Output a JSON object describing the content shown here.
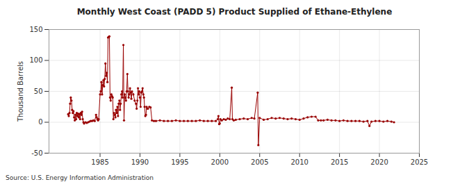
{
  "chart_data": {
    "type": "line",
    "title": "Monthly West Coast (PADD 5) Product Supplied of Ethane-Ethylene",
    "y_label": "Thousand Barrels",
    "source": "Source: U.S. Energy Information Administration",
    "color": "#990000",
    "marker": "circle",
    "line_style": "solid",
    "grid": true,
    "xlim": [
      1978.6,
      2025
    ],
    "xticks": [
      1985,
      1990,
      1995,
      2000,
      2005,
      2010,
      2015,
      2020,
      2025
    ],
    "ylim": [
      -50,
      150
    ],
    "yticks": [
      -50,
      0,
      50,
      100,
      150
    ],
    "x": [
      1981.0,
      1981.08,
      1981.17,
      1981.25,
      1981.33,
      1981.42,
      1981.5,
      1981.58,
      1981.67,
      1981.75,
      1981.83,
      1981.92,
      1982.0,
      1982.08,
      1982.17,
      1982.25,
      1982.33,
      1982.42,
      1982.5,
      1982.58,
      1982.67,
      1982.75,
      1982.83,
      1982.92,
      1983.0,
      1983.17,
      1983.33,
      1983.5,
      1983.67,
      1983.83,
      1984.0,
      1984.17,
      1984.33,
      1984.5,
      1984.58,
      1984.67,
      1984.75,
      1984.83,
      1985.0,
      1985.08,
      1985.17,
      1985.25,
      1985.33,
      1985.42,
      1985.5,
      1985.58,
      1985.67,
      1985.75,
      1985.83,
      1985.92,
      1986.0,
      1986.08,
      1986.17,
      1986.25,
      1986.33,
      1986.42,
      1986.5,
      1986.58,
      1986.67,
      1986.75,
      1986.83,
      1986.92,
      1987.0,
      1987.08,
      1987.17,
      1987.25,
      1987.33,
      1987.42,
      1987.5,
      1987.58,
      1987.67,
      1987.75,
      1987.83,
      1987.92,
      1988.0,
      1988.08,
      1988.17,
      1988.25,
      1988.33,
      1988.42,
      1988.5,
      1988.58,
      1988.67,
      1988.75,
      1988.83,
      1988.92,
      1989.0,
      1989.17,
      1989.33,
      1989.5,
      1989.58,
      1989.67,
      1989.75,
      1989.83,
      1989.92,
      1990.0,
      1990.08,
      1990.17,
      1990.25,
      1990.33,
      1990.42,
      1990.5,
      1990.58,
      1990.67,
      1990.75,
      1990.83,
      1990.92,
      1991.0,
      1991.17,
      1991.33,
      1991.5,
      1991.75,
      1992.0,
      1992.5,
      1993.0,
      1993.5,
      1994.0,
      1994.5,
      1995.0,
      1995.5,
      1996.0,
      1996.5,
      1997.0,
      1997.5,
      1998.0,
      1998.5,
      1999.0,
      1999.5,
      1999.75,
      1999.83,
      1999.92,
      2000.0,
      2000.08,
      2000.25,
      2000.5,
      2000.75,
      2001.0,
      2001.25,
      2001.5,
      2001.58,
      2001.75,
      2002.0,
      2002.5,
      2003.0,
      2003.5,
      2004.0,
      2004.33,
      2004.75,
      2004.83,
      2005.0,
      2005.5,
      2006.0,
      2006.5,
      2007.0,
      2007.5,
      2008.0,
      2008.5,
      2009.0,
      2009.5,
      2010.0,
      2010.5,
      2011.0,
      2011.5,
      2012.0,
      2012.33,
      2012.67,
      2013.0,
      2013.5,
      2014.0,
      2014.5,
      2015.0,
      2015.5,
      2016.0,
      2016.5,
      2017.0,
      2017.5,
      2018.0,
      2018.5,
      2018.75,
      2019.0,
      2019.5,
      2020.0,
      2020.5,
      2021.0,
      2021.5,
      2021.83
    ],
    "values": [
      13,
      10,
      15,
      30,
      40,
      35,
      20,
      15,
      18,
      8,
      3,
      12,
      5,
      15,
      10,
      14,
      8,
      13,
      5,
      15,
      12,
      17,
      5,
      0,
      -2,
      0,
      -1,
      0,
      1,
      2,
      2,
      3,
      2,
      12,
      8,
      5,
      3,
      5,
      45,
      50,
      65,
      45,
      60,
      68,
      58,
      70,
      95,
      75,
      80,
      65,
      137,
      138,
      139,
      40,
      35,
      45,
      42,
      40,
      5,
      15,
      12,
      8,
      20,
      15,
      25,
      10,
      30,
      35,
      20,
      30,
      45,
      50,
      40,
      125,
      3,
      45,
      40,
      35,
      50,
      78,
      50,
      40,
      45,
      55,
      48,
      38,
      50,
      45,
      35,
      30,
      22,
      35,
      55,
      45,
      50,
      40,
      25,
      48,
      50,
      55,
      45,
      40,
      25,
      10,
      12,
      25,
      22,
      22,
      25,
      24,
      3,
      2,
      2,
      3,
      2,
      2,
      2,
      3,
      2,
      2,
      2,
      2,
      2,
      3,
      2,
      2,
      2,
      2,
      5,
      10,
      -3,
      -2,
      5,
      3,
      5,
      4,
      6,
      5,
      56,
      5,
      3,
      4,
      5,
      6,
      5,
      7,
      6,
      48,
      -37,
      7,
      4,
      5,
      7,
      6,
      7,
      6,
      5,
      6,
      5,
      4,
      6,
      8,
      9,
      9,
      3,
      3,
      3,
      4,
      3,
      3,
      2,
      3,
      2,
      2,
      2,
      2,
      1,
      2,
      -6,
      1,
      2,
      2,
      1,
      2,
      1,
      0
    ]
  }
}
